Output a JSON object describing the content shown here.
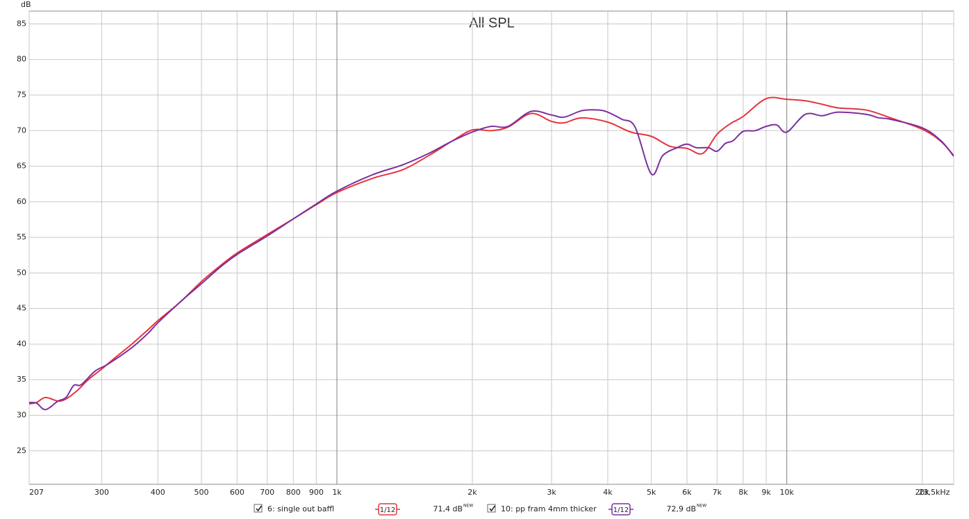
{
  "chart_data": {
    "type": "line",
    "title": "All SPL",
    "y_label": "dB",
    "log_x": true,
    "grid": true,
    "xlim": [
      207,
      23500
    ],
    "ylim": [
      20.3,
      86.8
    ],
    "xticks": [
      207,
      300,
      400,
      500,
      600,
      700,
      800,
      900,
      {
        "value": 1000,
        "label": "1k"
      },
      {
        "value": 2000,
        "label": "2k"
      },
      {
        "value": 3000,
        "label": "3k"
      },
      {
        "value": 4000,
        "label": "4k"
      },
      {
        "value": 5000,
        "label": "5k"
      },
      {
        "value": 6000,
        "label": "6k"
      },
      {
        "value": 7000,
        "label": "7k"
      },
      {
        "value": 8000,
        "label": "8k"
      },
      {
        "value": 9000,
        "label": "9k"
      },
      {
        "value": 10000,
        "label": "10k"
      },
      {
        "value": 20000,
        "label": "20k"
      },
      {
        "value": 23500,
        "label": "23,5kHz"
      }
    ],
    "yticks": [
      25,
      30,
      35,
      40,
      45,
      50,
      55,
      60,
      65,
      70,
      75,
      80,
      85
    ],
    "series": [
      {
        "name": "6: single out baffl",
        "color": "#e8323c",
        "smoothing": "1/12",
        "level": "71,4 dB",
        "level_tag": "NEW",
        "x": [
          207,
          215,
          225,
          240,
          250,
          265,
          280,
          300,
          320,
          350,
          380,
          400,
          450,
          500,
          550,
          600,
          700,
          800,
          900,
          1000,
          1200,
          1400,
          1600,
          1800,
          2000,
          2200,
          2400,
          2700,
          3000,
          3200,
          3500,
          4000,
          4500,
          5000,
          5500,
          6000,
          6500,
          7000,
          7500,
          8000,
          9000,
          10000,
          11000,
          12000,
          13000,
          15000,
          17000,
          20000,
          22000,
          23500
        ],
        "values": [
          31.6,
          31.8,
          32.5,
          32.0,
          32.3,
          33.5,
          35,
          36.5,
          38,
          40,
          42,
          43.3,
          46,
          48.8,
          51,
          52.8,
          55.4,
          57.6,
          59.6,
          61.3,
          63.3,
          64.5,
          66.5,
          68.5,
          70.1,
          70.0,
          70.5,
          72.4,
          71.3,
          71.1,
          71.8,
          71.2,
          69.8,
          69.2,
          67.8,
          67.5,
          66.8,
          69.5,
          71,
          72,
          74.5,
          74.4,
          74.2,
          73.7,
          73.2,
          72.9,
          71.8,
          70.2,
          68.5,
          66.5
        ]
      },
      {
        "name": "10: pp fram 4mm thicker",
        "color": "#7b2fa0",
        "smoothing": "1/12",
        "level": "72,9 dB",
        "level_tag": "NEW",
        "x": [
          207,
          215,
          225,
          240,
          250,
          260,
          270,
          290,
          310,
          350,
          380,
          400,
          450,
          500,
          550,
          600,
          700,
          800,
          900,
          1000,
          1200,
          1400,
          1600,
          1800,
          2000,
          2200,
          2400,
          2700,
          3000,
          3200,
          3500,
          3800,
          4000,
          4300,
          4600,
          5000,
          5300,
          5700,
          6000,
          6300,
          6700,
          7000,
          7300,
          7600,
          8000,
          8500,
          9000,
          9500,
          10000,
          11000,
          12000,
          13000,
          15000,
          16000,
          17000,
          20000,
          22000,
          23500
        ],
        "values": [
          31.8,
          31.7,
          30.8,
          32.0,
          32.5,
          34.2,
          34.3,
          36.2,
          37.2,
          39.5,
          41.5,
          43,
          46,
          48.5,
          50.8,
          52.6,
          55.2,
          57.6,
          59.7,
          61.5,
          63.8,
          65.2,
          66.8,
          68.5,
          69.8,
          70.6,
          70.6,
          72.7,
          72.2,
          71.9,
          72.8,
          72.9,
          72.6,
          71.6,
          70.5,
          63.9,
          66.5,
          67.6,
          68.1,
          67.6,
          67.6,
          67.1,
          68.2,
          68.6,
          69.9,
          70.0,
          70.6,
          70.8,
          69.8,
          72.3,
          72.1,
          72.6,
          72.3,
          71.8,
          71.6,
          70.4,
          68.6,
          66.4
        ]
      }
    ]
  }
}
